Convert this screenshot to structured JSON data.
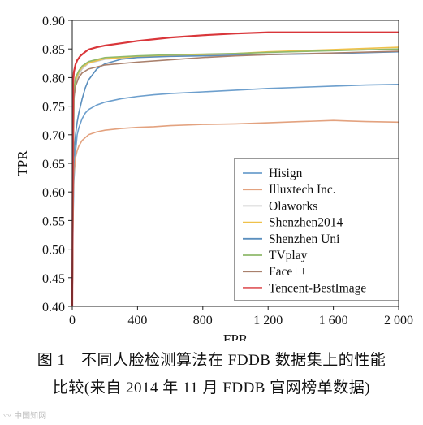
{
  "figure": {
    "caption_line1": "图 1　不同人脸检测算法在 FDDB 数据集上的性能",
    "caption_line2": "比较(来自 2014 年 11 月 FDDB 官网榜单数据)",
    "watermark": "中国知网"
  },
  "chart_data": {
    "type": "line",
    "title": "",
    "xlabel": "FPR",
    "ylabel": "TPR",
    "xlim": [
      0,
      2000
    ],
    "ylim": [
      0.4,
      0.9
    ],
    "xticks": [
      0,
      400,
      800,
      1200,
      1600,
      2000
    ],
    "xtick_labels": [
      "0",
      "400",
      "800",
      "1 200",
      "1 600",
      "2 000"
    ],
    "yticks": [
      0.4,
      0.45,
      0.5,
      0.55,
      0.6,
      0.65,
      0.7,
      0.75,
      0.8,
      0.85,
      0.9
    ],
    "ytick_labels": [
      "0.40",
      "0.45",
      "0.50",
      "0.55",
      "0.60",
      "0.65",
      "0.70",
      "0.75",
      "0.80",
      "0.85",
      "0.90"
    ],
    "grid": false,
    "legend_position": "lower-right",
    "series": [
      {
        "name": "Hisign",
        "color": "#6d9fcd",
        "x": [
          0,
          5,
          10,
          20,
          30,
          40,
          60,
          80,
          100,
          150,
          200,
          300,
          400,
          500,
          600,
          800,
          1000,
          1200,
          1400,
          1600,
          1800,
          2000
        ],
        "y": [
          0.4,
          0.55,
          0.62,
          0.67,
          0.7,
          0.712,
          0.728,
          0.738,
          0.744,
          0.752,
          0.757,
          0.763,
          0.767,
          0.77,
          0.772,
          0.775,
          0.778,
          0.781,
          0.783,
          0.785,
          0.787,
          0.788
        ]
      },
      {
        "name": "Illuxtech Inc.",
        "color": "#e3a27f",
        "x": [
          0,
          5,
          10,
          20,
          30,
          40,
          60,
          80,
          100,
          150,
          200,
          300,
          400,
          500,
          600,
          800,
          1000,
          1200,
          1400,
          1600,
          1700,
          1800,
          2000
        ],
        "y": [
          0.4,
          0.58,
          0.63,
          0.66,
          0.672,
          0.68,
          0.69,
          0.695,
          0.7,
          0.705,
          0.708,
          0.711,
          0.713,
          0.714,
          0.716,
          0.718,
          0.719,
          0.721,
          0.723,
          0.725,
          0.724,
          0.723,
          0.722
        ]
      },
      {
        "name": "Olaworks",
        "color": "#c8c8c8",
        "x": [
          0,
          10,
          20,
          40,
          60,
          100,
          200,
          400,
          600,
          800,
          1000,
          1200,
          1600,
          2000
        ],
        "y": [
          0.4,
          0.76,
          0.79,
          0.805,
          0.815,
          0.825,
          0.832,
          0.836,
          0.838,
          0.839,
          0.84,
          0.841,
          0.843,
          0.845
        ]
      },
      {
        "name": "Shenzhen2014",
        "color": "#efc14a",
        "x": [
          0,
          10,
          20,
          40,
          60,
          100,
          200,
          400,
          600,
          800,
          1000,
          1200,
          1600,
          2000
        ],
        "y": [
          0.4,
          0.77,
          0.795,
          0.81,
          0.818,
          0.826,
          0.833,
          0.837,
          0.839,
          0.84,
          0.842,
          0.845,
          0.849,
          0.853
        ]
      },
      {
        "name": "Shenzhen Uni",
        "color": "#5b8fbe",
        "x": [
          0,
          5,
          10,
          20,
          30,
          40,
          60,
          80,
          100,
          150,
          200,
          300,
          400,
          600,
          800,
          1000,
          1200,
          1600,
          2000
        ],
        "y": [
          0.4,
          0.6,
          0.66,
          0.7,
          0.722,
          0.738,
          0.762,
          0.782,
          0.796,
          0.815,
          0.824,
          0.832,
          0.835,
          0.837,
          0.838,
          0.839,
          0.84,
          0.842,
          0.845
        ]
      },
      {
        "name": "TVplay",
        "color": "#8fb96b",
        "x": [
          0,
          10,
          20,
          40,
          60,
          100,
          200,
          400,
          600,
          800,
          1000,
          1200,
          1600,
          2000
        ],
        "y": [
          0.4,
          0.78,
          0.8,
          0.812,
          0.82,
          0.828,
          0.835,
          0.838,
          0.84,
          0.841,
          0.842,
          0.844,
          0.847,
          0.85
        ]
      },
      {
        "name": "Face++",
        "color": "#a9806c",
        "x": [
          0,
          10,
          20,
          40,
          60,
          100,
          200,
          400,
          600,
          800,
          1000,
          1200,
          1600,
          2000
        ],
        "y": [
          0.4,
          0.765,
          0.785,
          0.8,
          0.808,
          0.815,
          0.822,
          0.827,
          0.831,
          0.835,
          0.838,
          0.84,
          0.843,
          0.846
        ]
      },
      {
        "name": "Tencent-BestImage",
        "color": "#d9363a",
        "x": [
          0,
          5,
          10,
          20,
          30,
          50,
          80,
          100,
          150,
          200,
          300,
          400,
          500,
          600,
          800,
          1000,
          1200,
          1400,
          1600,
          1800,
          2000
        ],
        "y": [
          0.4,
          0.79,
          0.81,
          0.823,
          0.83,
          0.838,
          0.845,
          0.849,
          0.853,
          0.856,
          0.86,
          0.864,
          0.867,
          0.87,
          0.874,
          0.877,
          0.879,
          0.879,
          0.879,
          0.879,
          0.879
        ]
      }
    ]
  }
}
